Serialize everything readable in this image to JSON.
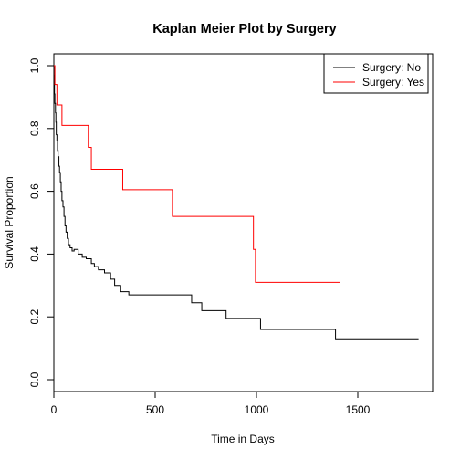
{
  "chart_data": {
    "type": "line",
    "title": "Kaplan Meier Plot by Surgery",
    "xlabel": "Time in Days",
    "ylabel": "Survival Proportion",
    "xlim": [
      0,
      1800
    ],
    "ylim": [
      0,
      1
    ],
    "xticks": [
      0,
      500,
      1000,
      1500
    ],
    "yticks": [
      0.0,
      0.2,
      0.4,
      0.6,
      0.8,
      1.0
    ],
    "xtick_labels": [
      "0",
      "500",
      "1000",
      "1500"
    ],
    "ytick_labels": [
      "0.0",
      "0.2",
      "0.4",
      "0.6",
      "0.8",
      "1.0"
    ],
    "grid": false,
    "legend_position": "top-right",
    "series": [
      {
        "name": "Surgery: No",
        "color": "#000000",
        "step": true,
        "x": [
          0,
          1,
          2,
          3,
          5,
          8,
          10,
          12,
          15,
          18,
          21,
          25,
          28,
          32,
          36,
          40,
          45,
          50,
          55,
          60,
          66,
          72,
          80,
          90,
          100,
          120,
          140,
          160,
          185,
          200,
          220,
          250,
          280,
          300,
          330,
          370,
          450,
          550,
          680,
          730,
          850,
          1020,
          1390,
          1800
        ],
        "y": [
          1.0,
          0.97,
          0.94,
          0.91,
          0.88,
          0.85,
          0.82,
          0.78,
          0.76,
          0.73,
          0.71,
          0.68,
          0.66,
          0.63,
          0.6,
          0.57,
          0.55,
          0.52,
          0.49,
          0.47,
          0.45,
          0.43,
          0.42,
          0.41,
          0.415,
          0.4,
          0.39,
          0.385,
          0.37,
          0.36,
          0.35,
          0.34,
          0.32,
          0.3,
          0.28,
          0.27,
          0.27,
          0.27,
          0.245,
          0.22,
          0.195,
          0.16,
          0.13,
          0.13
        ]
      },
      {
        "name": "Surgery: Yes",
        "color": "#ff0000",
        "step": true,
        "x": [
          0,
          5,
          15,
          40,
          170,
          185,
          340,
          585,
          985,
          995,
          1410
        ],
        "y": [
          1.0,
          0.94,
          0.875,
          0.81,
          0.74,
          0.67,
          0.605,
          0.52,
          0.415,
          0.31,
          0.31
        ]
      }
    ]
  }
}
